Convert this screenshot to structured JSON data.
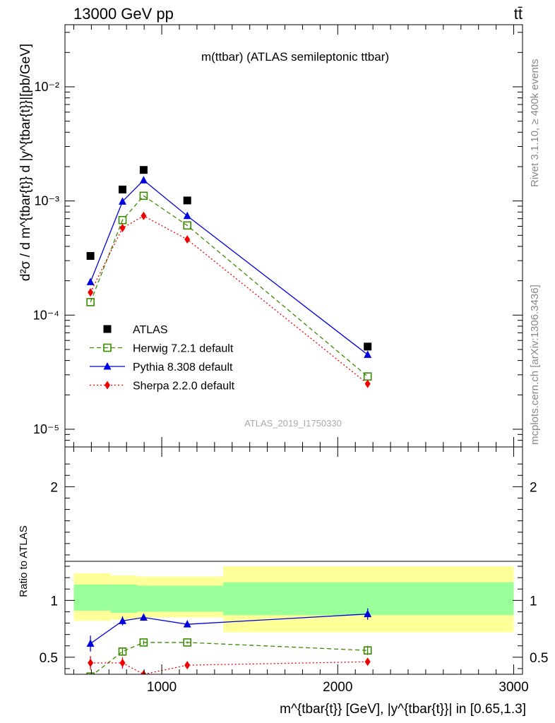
{
  "header": {
    "energy_label": "13000 GeV pp",
    "process_label": "tt̄"
  },
  "side_labels": {
    "rivet": "Rivet 3.1.10, ≥ 400k events",
    "mcplots": "mcplots.cern.ch [arXiv:1306.3436]"
  },
  "colors": {
    "atlas": "#000000",
    "herwig": "#3a8a00",
    "pythia": "#0000dd",
    "sherpa": "#ee0000",
    "band_inner": "#99ff99",
    "band_outer": "#ffff99"
  },
  "chart_data": [
    {
      "type": "scatter",
      "title": "m(ttbar) (ATLAS semileptonic ttbar)",
      "watermark": "ATLAS_2019_I1750330",
      "ylabel": "d²σ / d m^{tbar{t}} d |y^{tbar{t}}|[pb/GeV]",
      "yscale": "log",
      "ylim": [
        7e-06,
        0.035
      ],
      "xlim": [
        450,
        3050
      ],
      "y_tick_labels": [
        "10⁻⁵",
        "10⁻⁴",
        "10⁻³",
        "10⁻²"
      ],
      "legend_position": "lower-left",
      "x": [
        595,
        777,
        897,
        1145,
        2170
      ],
      "series": [
        {
          "name": "ATLAS",
          "marker": "square",
          "values": [
            0.00033,
            0.00126,
            0.00187,
            0.00101,
            5.3e-05
          ]
        },
        {
          "name": "Herwig 7.2.1 default",
          "marker": "open-square",
          "line": "dashed",
          "values": [
            0.00013,
            0.00068,
            0.00111,
            0.00061,
            2.9e-05
          ]
        },
        {
          "name": "Pythia 8.308 default",
          "marker": "triangle",
          "line": "solid",
          "values": [
            0.000195,
            0.00099,
            0.00152,
            0.00074,
            4.5e-05
          ]
        },
        {
          "name": "Sherpa 2.2.0 default",
          "marker": "diamond",
          "line": "dotted",
          "values": [
            0.000158,
            0.00058,
            0.00074,
            0.00046,
            2.5e-05
          ]
        }
      ]
    },
    {
      "type": "line",
      "ylabel": "Ratio to ATLAS",
      "xlabel": "m^{tbar{t}} [GeV], |y^{tbar{t}}| in [0.65,1.3]",
      "xlim": [
        450,
        3050
      ],
      "ylim": [
        0.35,
        2.35
      ],
      "x_ticks": [
        1000,
        2000,
        3000
      ],
      "y_ticks": [
        0.5,
        1,
        2
      ],
      "uncertainty_bands": [
        {
          "x_range": [
            500,
            710
          ],
          "inner": [
            0.91,
            1.14
          ],
          "outer": [
            0.82,
            1.24
          ]
        },
        {
          "x_range": [
            710,
            860
          ],
          "inner": [
            0.89,
            1.14
          ],
          "outer": [
            0.83,
            1.22
          ]
        },
        {
          "x_range": [
            860,
            1350
          ],
          "inner": [
            0.9,
            1.13
          ],
          "outer": [
            0.85,
            1.21
          ]
        },
        {
          "x_range": [
            1350,
            3000
          ],
          "inner": [
            0.87,
            1.16
          ],
          "outer": [
            0.72,
            1.3
          ]
        }
      ],
      "x": [
        595,
        777,
        897,
        1145,
        2170
      ],
      "series": [
        {
          "name": "Herwig 7.2.1 default",
          "values": [
            0.33,
            0.55,
            0.63,
            0.63,
            0.56
          ],
          "errors": [
            0.02,
            0.03,
            0.02,
            0.01,
            0.04
          ]
        },
        {
          "name": "Pythia 8.308 default",
          "values": [
            0.62,
            0.82,
            0.85,
            0.79,
            0.88
          ],
          "errors": [
            0.07,
            0.04,
            0.03,
            0.02,
            0.05
          ]
        },
        {
          "name": "Sherpa 2.2.0 default",
          "values": [
            0.45,
            0.45,
            0.35,
            0.43,
            0.46
          ],
          "errors": [
            0.06,
            0.05,
            0.03,
            0.03,
            0.03
          ]
        }
      ]
    }
  ]
}
